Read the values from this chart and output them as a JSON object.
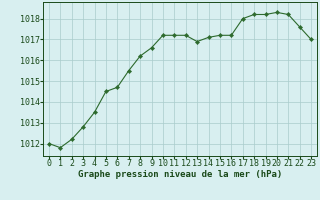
{
  "x": [
    0,
    1,
    2,
    3,
    4,
    5,
    6,
    7,
    8,
    9,
    10,
    11,
    12,
    13,
    14,
    15,
    16,
    17,
    18,
    19,
    20,
    21,
    22,
    23
  ],
  "y": [
    1012.0,
    1011.8,
    1012.2,
    1012.8,
    1013.5,
    1014.5,
    1014.7,
    1015.5,
    1016.2,
    1016.6,
    1017.2,
    1017.2,
    1017.2,
    1016.9,
    1017.1,
    1017.2,
    1017.2,
    1018.0,
    1018.2,
    1018.2,
    1018.3,
    1018.2,
    1017.6,
    1017.0
  ],
  "line_color": "#2d6a2d",
  "marker": "D",
  "marker_size": 2.2,
  "bg_color": "#d8eff0",
  "grid_color": "#aacccc",
  "ylabel_ticks": [
    1012,
    1013,
    1014,
    1015,
    1016,
    1017,
    1018
  ],
  "xlabel_label": "Graphe pression niveau de la mer (hPa)",
  "ylim": [
    1011.4,
    1018.8
  ],
  "xlim": [
    -0.5,
    23.5
  ],
  "title_color": "#1a4a1a",
  "label_fontsize": 6.5,
  "tick_fontsize": 6.0
}
